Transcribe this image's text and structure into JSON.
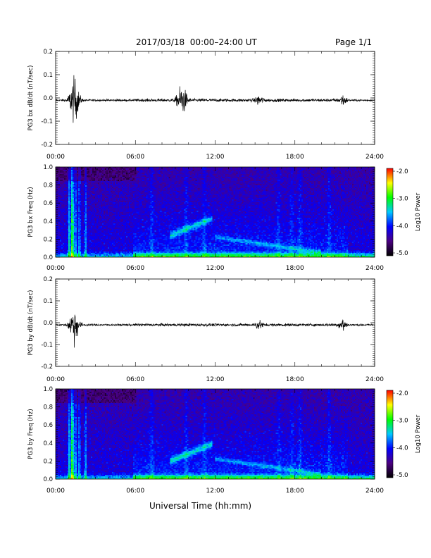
{
  "header": {
    "date_range": "2017/03/18  00:00–24:00 UT",
    "page": "Page 1/1"
  },
  "footer": {
    "xlabel": "Universal Time (hh:mm)"
  },
  "colorbar": {
    "title": "Log10 Power",
    "ticks": [
      "-2.0",
      "-3.0",
      "-4.0",
      "-5.0"
    ],
    "range": [
      -5.0,
      -2.0
    ],
    "stops": [
      "#000000",
      "#4b0082",
      "#0000ff",
      "#00c8ff",
      "#00ff00",
      "#ffff00",
      "#ff0000"
    ]
  },
  "x_axis": {
    "ticks": [
      "00:00",
      "06:00",
      "12:00",
      "18:00",
      "24:00"
    ],
    "range_hours": [
      0,
      24
    ]
  },
  "chart_data": [
    {
      "type": "line",
      "ylabel": "PG3 bx dB/dt (nT/sec)",
      "ylim": [
        -0.2,
        0.2
      ],
      "yticks": [
        "0.2",
        "0.1",
        "0.0",
        "-0.1",
        "-0.2"
      ],
      "baseline": -0.01,
      "bursts": [
        {
          "t_hours": 1.4,
          "amplitude": 0.09
        },
        {
          "t_hours": 9.5,
          "amplitude": 0.06
        },
        {
          "t_hours": 15.3,
          "amplitude": 0.02
        },
        {
          "t_hours": 21.6,
          "amplitude": 0.02
        }
      ],
      "grid": false
    },
    {
      "type": "heatmap",
      "ylabel": "PG3 bx Freq (Hz)",
      "ylim": [
        0.0,
        1.0
      ],
      "yticks": [
        "1.0",
        "0.8",
        "0.6",
        "0.4",
        "0.2",
        "0.0"
      ],
      "colorbar": "Log10 Power",
      "zlim": [
        -5.0,
        -2.0
      ]
    },
    {
      "type": "line",
      "ylabel": "PG3 by dB/dt (nT/sec)",
      "ylim": [
        -0.2,
        0.2
      ],
      "yticks": [
        "0.2",
        "0.1",
        "0.0",
        "-0.1",
        "-0.2"
      ],
      "baseline": -0.01,
      "bursts": [
        {
          "t_hours": 1.4,
          "amplitude": 0.08
        },
        {
          "t_hours": 15.3,
          "amplitude": 0.02
        },
        {
          "t_hours": 21.6,
          "amplitude": 0.03
        }
      ],
      "grid": false
    },
    {
      "type": "heatmap",
      "ylabel": "PG3 by Freq (Hz)",
      "ylim": [
        0.0,
        1.0
      ],
      "yticks": [
        "1.0",
        "0.8",
        "0.6",
        "0.4",
        "0.2",
        "0.0"
      ],
      "colorbar": "Log10 Power",
      "zlim": [
        -5.0,
        -2.0
      ]
    }
  ]
}
